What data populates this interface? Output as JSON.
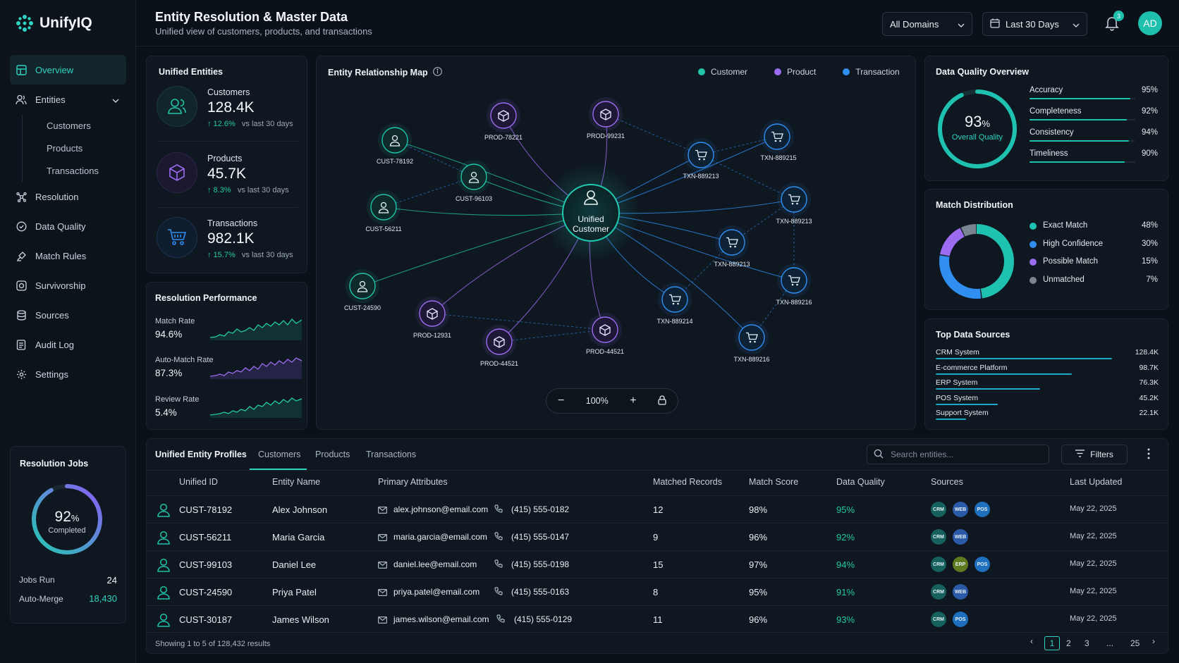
{
  "app": {
    "name": "UnifyIQ"
  },
  "header": {
    "title": "Entity Resolution & Master Data",
    "subtitle": "Unified view of customers, products, and transactions",
    "domain_select": "All Domains",
    "date_select": "Last 30 Days",
    "notifications": "3",
    "avatar": "AD"
  },
  "sidebar": {
    "items": [
      {
        "label": "Overview"
      },
      {
        "label": "Entities"
      },
      {
        "label": "Customers"
      },
      {
        "label": "Products"
      },
      {
        "label": "Transactions"
      },
      {
        "label": "Resolution"
      },
      {
        "label": "Data Quality"
      },
      {
        "label": "Match Rules"
      },
      {
        "label": "Survivorship"
      },
      {
        "label": "Sources"
      },
      {
        "label": "Audit Log"
      },
      {
        "label": "Settings"
      }
    ]
  },
  "jobs": {
    "title": "Resolution Jobs",
    "percent": "92",
    "pct_sign": "%",
    "completed_label": "Completed",
    "fraction": 0.92,
    "jobs_run_label": "Jobs Run",
    "jobs_run": "24",
    "auto_merge_label": "Auto-Merge",
    "auto_merge": "18,430"
  },
  "unified": {
    "title": "Unified Entities",
    "items": [
      {
        "label": "Customers",
        "value": "128.4K",
        "change": "↑ 12.6%",
        "vs": "vs last 30 days"
      },
      {
        "label": "Products",
        "value": "45.7K",
        "change": "↑ 8.3%",
        "vs": "vs last 30 days"
      },
      {
        "label": "Transactions",
        "value": "982.1K",
        "change": "↑ 15.7%",
        "vs": "vs last 30 days"
      }
    ]
  },
  "perf": {
    "title": "Resolution Performance",
    "items": [
      {
        "label": "Match Rate",
        "value": "94.6%",
        "color": "#23c9a2"
      },
      {
        "label": "Auto-Match Rate",
        "value": "87.3%",
        "color": "#8b5cf6"
      },
      {
        "label": "Review Rate",
        "value": "5.4%",
        "color": "#23c9a2"
      }
    ]
  },
  "map": {
    "title": "Entity Relationship Map",
    "legend": [
      {
        "label": "Customer",
        "color": "#22c3a8"
      },
      {
        "label": "Product",
        "color": "#9b6cf0"
      },
      {
        "label": "Transaction",
        "color": "#2f8ef0"
      }
    ],
    "center_line1": "Unified",
    "center_line2": "Customer",
    "zoom": "100%",
    "nodes": [
      {
        "id": "CUST-78192",
        "type": "customer"
      },
      {
        "id": "CUST-96103",
        "type": "customer"
      },
      {
        "id": "CUST-56211",
        "type": "customer"
      },
      {
        "id": "CUST-24590",
        "type": "customer"
      },
      {
        "id": "PROD-78221",
        "type": "product"
      },
      {
        "id": "PROD-99231",
        "type": "product"
      },
      {
        "id": "PROD-12931",
        "type": "product"
      },
      {
        "id": "PROD-44521",
        "type": "product"
      },
      {
        "id": "PROD-44521",
        "type": "product"
      },
      {
        "id": "TXN-889213",
        "type": "transaction"
      },
      {
        "id": "TXN-889215",
        "type": "transaction"
      },
      {
        "id": "TXN-889213",
        "type": "transaction"
      },
      {
        "id": "TXN-889213",
        "type": "transaction"
      },
      {
        "id": "TXN-889216",
        "type": "transaction"
      },
      {
        "id": "TXN-889214",
        "type": "transaction"
      },
      {
        "id": "TXN-889216",
        "type": "transaction"
      }
    ]
  },
  "quality": {
    "title": "Data Quality Overview",
    "percent": "93",
    "pct_sign": "%",
    "label": "Overall Quality",
    "fraction": 0.93,
    "metrics": [
      {
        "label": "Accuracy",
        "value": "95%",
        "fraction": 0.95
      },
      {
        "label": "Completeness",
        "value": "92%",
        "fraction": 0.92
      },
      {
        "label": "Consistency",
        "value": "94%",
        "fraction": 0.94
      },
      {
        "label": "Timeliness",
        "value": "90%",
        "fraction": 0.9
      }
    ]
  },
  "match": {
    "title": "Match Distribution",
    "items": [
      {
        "label": "Exact Match",
        "value": "48%",
        "fraction": 0.48,
        "color": "#1fc2b0"
      },
      {
        "label": "High Confidence",
        "value": "30%",
        "fraction": 0.3,
        "color": "#2f8ef0"
      },
      {
        "label": "Possible Match",
        "value": "15%",
        "fraction": 0.15,
        "color": "#9b6cf0"
      },
      {
        "label": "Unmatched",
        "value": "7%",
        "fraction": 0.07,
        "color": "#7a8591"
      }
    ]
  },
  "sources": {
    "title": "Top Data Sources",
    "items": [
      {
        "label": "CRM System",
        "value": "128.4K",
        "fraction": 1.0
      },
      {
        "label": "E-commerce Platform",
        "value": "98.7K",
        "fraction": 0.77
      },
      {
        "label": "ERP System",
        "value": "76.3K",
        "fraction": 0.59
      },
      {
        "label": "POS System",
        "value": "45.2K",
        "fraction": 0.35
      },
      {
        "label": "Support System",
        "value": "22.1K",
        "fraction": 0.17
      }
    ]
  },
  "table": {
    "title": "Unified Entity Profiles",
    "tabs": [
      "Customers",
      "Products",
      "Transactions"
    ],
    "search_placeholder": "Search entities...",
    "filters": "Filters",
    "columns": [
      "Unified ID",
      "Entity Name",
      "Primary Attributes",
      "Matched Records",
      "Match Score",
      "Data Quality",
      "Sources",
      "Last Updated"
    ],
    "rows": [
      {
        "id": "CUST-78192",
        "name": "Alex Johnson",
        "email": "alex.johnson@email.com",
        "phone": "(415) 555-0182",
        "matched": "12",
        "score": "98%",
        "quality": "95%",
        "sources": [
          "CRM",
          "WEB",
          "POS"
        ],
        "updated": "May 22, 2025"
      },
      {
        "id": "CUST-56211",
        "name": "Maria Garcia",
        "email": "maria.garcia@email.com",
        "phone": "(415) 555-0147",
        "matched": "9",
        "score": "96%",
        "quality": "92%",
        "sources": [
          "CRM",
          "WEB"
        ],
        "updated": "May 22, 2025"
      },
      {
        "id": "CUST-99103",
        "name": "Daniel Lee",
        "email": "daniel.lee@email.com",
        "phone": "(415) 555-0198",
        "matched": "15",
        "score": "97%",
        "quality": "94%",
        "sources": [
          "CRM",
          "ERP",
          "POS"
        ],
        "updated": "May 22, 2025"
      },
      {
        "id": "CUST-24590",
        "name": "Priya Patel",
        "email": "priya.patel@email.com",
        "phone": "(415) 555-0163",
        "matched": "8",
        "score": "95%",
        "quality": "91%",
        "sources": [
          "CRM",
          "WEB"
        ],
        "updated": "May 22, 2025"
      },
      {
        "id": "CUST-30187",
        "name": "James Wilson",
        "email": "james.wilson@email.com",
        "phone": "(415) 555-0129",
        "matched": "11",
        "score": "96%",
        "quality": "93%",
        "sources": [
          "CRM",
          "POS"
        ],
        "updated": "May 22, 2025"
      }
    ],
    "footer": "Showing 1 to 5 of 128,432 results",
    "pages": [
      "1",
      "2",
      "3",
      "...",
      "25"
    ]
  },
  "colors": {
    "accent": "#2ed3c2",
    "customer": "#22c3a8",
    "product": "#9b6cf0",
    "transaction": "#2f8ef0",
    "background": "#0b1119"
  }
}
